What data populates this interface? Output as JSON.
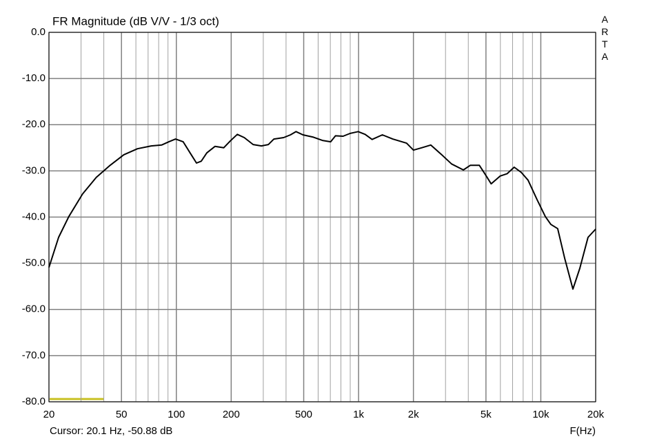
{
  "chart_data": {
    "type": "line",
    "title": "FR Magnitude (dB V/V - 1/3 oct)",
    "side_label": "ARTA",
    "cursor_text": "Cursor: 20.1 Hz, -50.88 dB",
    "x_label": "F(Hz)",
    "xscale": "log",
    "xlim": [
      20,
      20000
    ],
    "ylim": [
      -80,
      0
    ],
    "xticks": [
      20,
      50,
      100,
      200,
      500,
      {
        "value": 1000,
        "label": "1k"
      },
      {
        "value": 2000,
        "label": "2k"
      },
      {
        "value": 5000,
        "label": "5k"
      },
      {
        "value": 10000,
        "label": "10k"
      },
      {
        "value": 20000,
        "label": "20k"
      }
    ],
    "xgrid": [
      30,
      40,
      60,
      70,
      80,
      90,
      300,
      400,
      600,
      700,
      800,
      900,
      3000,
      4000,
      6000,
      7000,
      8000,
      9000
    ],
    "yticks": [
      {
        "value": 0,
        "label": "0.0"
      },
      {
        "value": -10,
        "label": "-10.0"
      },
      {
        "value": -20,
        "label": "-20.0"
      },
      {
        "value": -30,
        "label": "-30.0"
      },
      {
        "value": -40,
        "label": "-40.0"
      },
      {
        "value": -50,
        "label": "-50.0"
      },
      {
        "value": -60,
        "label": "-60.0"
      },
      {
        "value": -70,
        "label": "-70.0"
      },
      {
        "value": -80,
        "label": "-80.0"
      }
    ],
    "grid": true,
    "x": [
      20,
      22.6,
      25.7,
      30.6,
      36.4,
      43.3,
      51.5,
      61.2,
      72.8,
      83,
      91,
      99,
      109,
      119,
      129,
      137,
      147,
      163,
      182,
      198,
      216,
      236,
      264,
      293,
      320,
      343,
      388,
      423,
      454,
      495,
      565,
      633,
      703,
      747,
      822,
      897,
      995,
      1086,
      1186,
      1351,
      1540,
      1834,
      2000,
      2220,
      2490,
      2840,
      3240,
      3760,
      4100,
      4600,
      5020,
      5340,
      5990,
      6540,
      7140,
      7800,
      8510,
      9530,
      10590,
      11350,
      12380,
      13520,
      15000,
      16370,
      18160,
      20000
    ],
    "series": [
      {
        "name": "FR",
        "color": "#000000",
        "values": [
          -50.9,
          -44.4,
          -39.9,
          -35.0,
          -31.4,
          -28.8,
          -26.5,
          -25.2,
          -24.6,
          -24.4,
          -23.7,
          -23.1,
          -23.7,
          -26.1,
          -28.3,
          -27.9,
          -26.1,
          -24.7,
          -25.0,
          -23.5,
          -22.1,
          -22.8,
          -24.3,
          -24.6,
          -24.3,
          -23.1,
          -22.8,
          -22.2,
          -21.5,
          -22.2,
          -22.7,
          -23.4,
          -23.7,
          -22.4,
          -22.5,
          -21.9,
          -21.5,
          -22.1,
          -23.2,
          -22.2,
          -23.1,
          -24.0,
          -25.5,
          -25.0,
          -24.4,
          -26.4,
          -28.5,
          -29.8,
          -28.8,
          -28.8,
          -31.1,
          -32.8,
          -31.1,
          -30.6,
          -29.2,
          -30.3,
          -32.0,
          -36.2,
          -39.9,
          -41.6,
          -42.5,
          -48.9,
          -55.6,
          -51.1,
          -44.4,
          -42.6
        ]
      }
    ]
  }
}
